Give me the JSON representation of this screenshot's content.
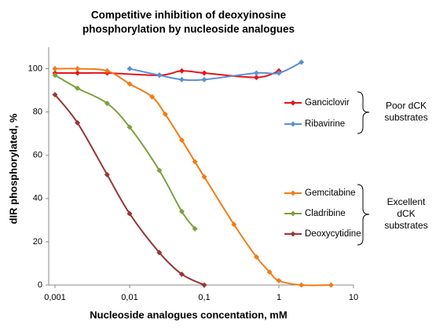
{
  "chart_data": {
    "type": "line",
    "title": [
      "Competitive inhibition of deoxyinosine",
      "phosphorylation by nucleoside analogues"
    ],
    "x_label": "Nucleoside analogues concentation, mM",
    "y_label": "dIR phosphorylated, %",
    "x_scale": "log",
    "xlim": [
      0.001,
      10
    ],
    "xticks": [
      {
        "value": 0.001,
        "label": "0,001"
      },
      {
        "value": 0.01,
        "label": "0,01"
      },
      {
        "value": 0.1,
        "label": "0,1"
      },
      1,
      10
    ],
    "ylim": [
      0,
      110
    ],
    "yticks": [
      0,
      20,
      40,
      60,
      80,
      100
    ],
    "grid": false,
    "annotations": [
      [
        "Poor dCK",
        "substrates"
      ],
      [
        "Excellent",
        "dCK",
        "substrates"
      ]
    ],
    "series": [
      {
        "name": "Ganciclovir",
        "color": "#e3161d",
        "x": [
          0.001,
          0.002,
          0.005,
          0.025,
          0.05,
          0.1,
          0.5,
          1
        ],
        "values": [
          98,
          98,
          98,
          97,
          99,
          98,
          96,
          99
        ]
      },
      {
        "name": "Ribavirine",
        "color": "#5b8fd4",
        "x": [
          0.01,
          0.025,
          0.05,
          0.1,
          0.5,
          1,
          2
        ],
        "values": [
          100,
          97,
          95,
          95,
          98,
          98,
          103
        ]
      },
      {
        "name": "Gemcitabine",
        "color": "#f07c15",
        "x": [
          0.001,
          0.002,
          0.005,
          0.01,
          0.02,
          0.03,
          0.05,
          0.075,
          0.1,
          0.25,
          0.5,
          0.75,
          1,
          2,
          5
        ],
        "values": [
          100,
          100,
          99,
          93,
          87,
          79,
          67,
          57,
          50,
          28,
          13,
          6,
          2,
          0,
          0
        ]
      },
      {
        "name": "Cladribine",
        "color": "#7f9f3f",
        "x": [
          0.001,
          0.002,
          0.005,
          0.01,
          0.025,
          0.05,
          0.075
        ],
        "values": [
          97,
          91,
          84,
          73,
          53,
          34,
          26
        ]
      },
      {
        "name": "Deoxycytidine",
        "color": "#953735",
        "x": [
          0.001,
          0.002,
          0.005,
          0.01,
          0.025,
          0.05,
          0.1
        ],
        "values": [
          88,
          75,
          51,
          33,
          15,
          5,
          0
        ]
      }
    ]
  }
}
